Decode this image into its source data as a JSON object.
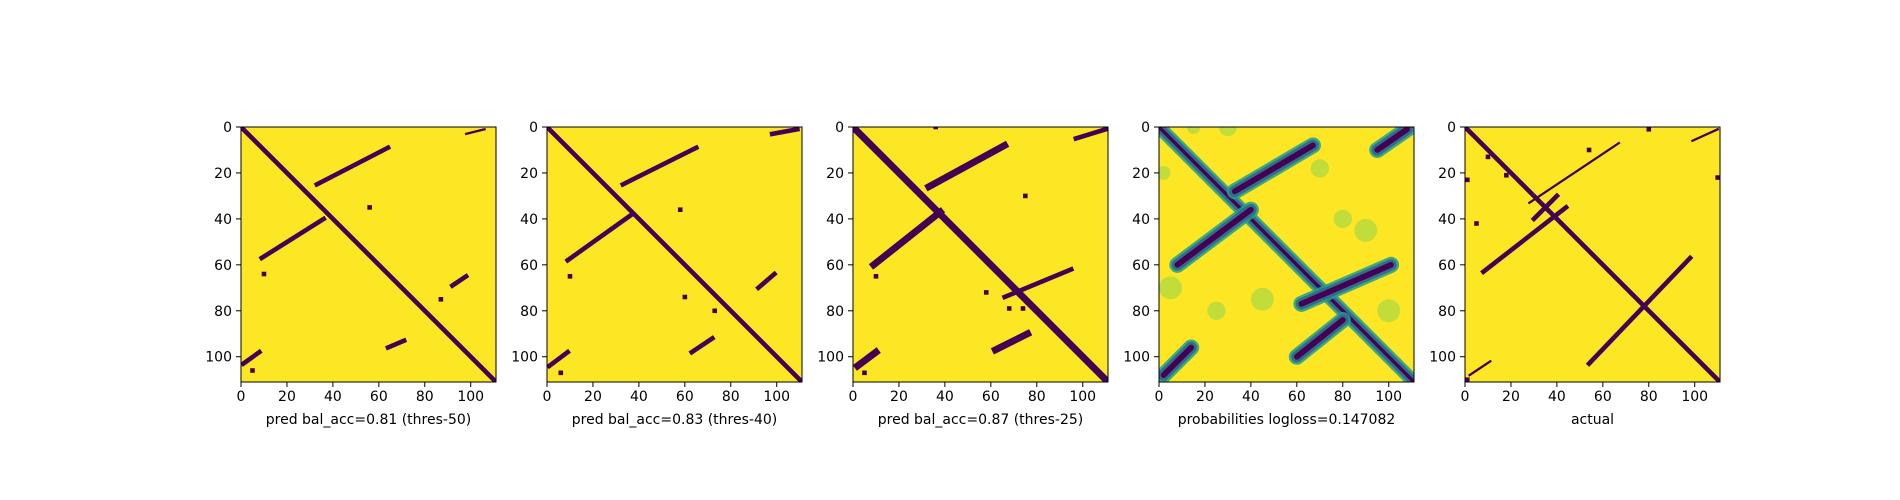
{
  "colors": {
    "background": "#fde725",
    "contact": "#440154",
    "mid_green": "#21a08a",
    "mid_blue": "#31688e",
    "light_green": "#7ad151",
    "frame": "#000000"
  },
  "chart_data": [
    {
      "type": "heatmap",
      "title": "",
      "xlabel": "pred bal_acc=0.81 (thres-50)",
      "ylabel": "",
      "xlim": [
        0,
        111
      ],
      "ylim": [
        111,
        0
      ],
      "xticks": [
        "0",
        "20",
        "40",
        "60",
        "80",
        "100"
      ],
      "yticks": [
        "0",
        "20",
        "40",
        "60",
        "80",
        "100"
      ],
      "values_range": [
        0,
        1
      ],
      "features": {
        "diagonal_width": 2,
        "strands": [
          {
            "from": [
              33,
              25
            ],
            "to": [
              64,
              9
            ],
            "width": 2
          },
          {
            "from": [
              9,
              57
            ],
            "to": [
              36,
              40
            ],
            "width": 2
          },
          {
            "from": [
              98,
              3
            ],
            "to": [
              106,
              1
            ],
            "width": 1
          },
          {
            "from": [
              92,
              69
            ],
            "to": [
              98,
              65
            ],
            "width": 2
          },
          {
            "from": [
              64,
              96
            ],
            "to": [
              71,
              93
            ],
            "width": 2
          },
          {
            "from": [
              1,
              103
            ],
            "to": [
              8,
              98
            ],
            "width": 2
          }
        ],
        "specks": [
          [
            10,
            64
          ],
          [
            87,
            75
          ],
          [
            5,
            106
          ],
          [
            56,
            35
          ]
        ]
      }
    },
    {
      "type": "heatmap",
      "title": "",
      "xlabel": "pred bal_acc=0.83 (thres-40)",
      "ylabel": "",
      "xlim": [
        0,
        111
      ],
      "ylim": [
        111,
        0
      ],
      "xticks": [
        "0",
        "20",
        "40",
        "60",
        "80",
        "100"
      ],
      "yticks": [
        "0",
        "20",
        "40",
        "60",
        "80",
        "100"
      ],
      "values_range": [
        0,
        1
      ],
      "features": {
        "diagonal_width": 2,
        "strands": [
          {
            "from": [
              33,
              25
            ],
            "to": [
              65,
              9
            ],
            "width": 2
          },
          {
            "from": [
              9,
              58
            ],
            "to": [
              37,
              38
            ],
            "width": 2
          },
          {
            "from": [
              98,
              3
            ],
            "to": [
              109,
              1
            ],
            "width": 2
          },
          {
            "from": [
              92,
              70
            ],
            "to": [
              99,
              64
            ],
            "width": 2
          },
          {
            "from": [
              63,
              98
            ],
            "to": [
              72,
              92
            ],
            "width": 2
          },
          {
            "from": [
              1,
              104
            ],
            "to": [
              9,
              98
            ],
            "width": 2
          }
        ],
        "specks": [
          [
            10,
            65
          ],
          [
            73,
            80
          ],
          [
            60,
            74
          ],
          [
            6,
            107
          ],
          [
            58,
            36
          ]
        ]
      }
    },
    {
      "type": "heatmap",
      "title": "",
      "xlabel": "pred bal_acc=0.87 (thres-25)",
      "ylabel": "",
      "xlim": [
        0,
        111
      ],
      "ylim": [
        111,
        0
      ],
      "xticks": [
        "0",
        "20",
        "40",
        "60",
        "80",
        "100"
      ],
      "yticks": [
        "0",
        "20",
        "40",
        "60",
        "80",
        "100"
      ],
      "values_range": [
        0,
        1
      ],
      "features": {
        "diagonal_width": 3,
        "strands": [
          {
            "from": [
              33,
              26
            ],
            "to": [
              66,
              8
            ],
            "width": 3
          },
          {
            "from": [
              9,
              60
            ],
            "to": [
              38,
              37
            ],
            "width": 3
          },
          {
            "from": [
              97,
              5
            ],
            "to": [
              110,
              1
            ],
            "width": 2
          },
          {
            "from": [
              66,
              74
            ],
            "to": [
              95,
              62
            ],
            "width": 2
          },
          {
            "from": [
              62,
              97
            ],
            "to": [
              76,
              90
            ],
            "width": 3
          },
          {
            "from": [
              2,
              104
            ],
            "to": [
              10,
              98
            ],
            "width": 3
          }
        ],
        "specks": [
          [
            10,
            65
          ],
          [
            74,
            79
          ],
          [
            58,
            72
          ],
          [
            36,
            0
          ],
          [
            75,
            30
          ],
          [
            5,
            107
          ],
          [
            68,
            79
          ]
        ]
      }
    },
    {
      "type": "heatmap",
      "title": "",
      "xlabel": "probabilities logloss=0.147082",
      "ylabel": "",
      "xlim": [
        0,
        111
      ],
      "ylim": [
        111,
        0
      ],
      "xticks": [
        "0",
        "20",
        "40",
        "60",
        "80",
        "100"
      ],
      "yticks": [
        "0",
        "20",
        "40",
        "60",
        "80",
        "100"
      ],
      "values_range": [
        0,
        1
      ],
      "features": {
        "diagonal_width": 3,
        "strands": [
          {
            "from": [
              33,
              28
            ],
            "to": [
              67,
              8
            ],
            "width": 4
          },
          {
            "from": [
              8,
              60
            ],
            "to": [
              40,
              36
            ],
            "width": 4
          },
          {
            "from": [
              95,
              10
            ],
            "to": [
              108,
              1
            ],
            "width": 4
          },
          {
            "from": [
              62,
              77
            ],
            "to": [
              101,
              60
            ],
            "width": 4
          },
          {
            "from": [
              60,
              100
            ],
            "to": [
              80,
              84
            ],
            "width": 4
          },
          {
            "from": [
              2,
              108
            ],
            "to": [
              14,
              96
            ],
            "width": 4
          }
        ],
        "haze": [
          {
            "center": [
              5,
              70
            ],
            "r": 5
          },
          {
            "center": [
              45,
              75
            ],
            "r": 5
          },
          {
            "center": [
              25,
              80
            ],
            "r": 4
          },
          {
            "center": [
              80,
              40
            ],
            "r": 4
          },
          {
            "center": [
              90,
              45
            ],
            "r": 5
          },
          {
            "center": [
              30,
              0
            ],
            "r": 4
          },
          {
            "center": [
              15,
              0
            ],
            "r": 3
          },
          {
            "center": [
              70,
              18
            ],
            "r": 4
          },
          {
            "center": [
              2,
              20
            ],
            "r": 3
          },
          {
            "center": [
              100,
              80
            ],
            "r": 5
          }
        ]
      }
    },
    {
      "type": "heatmap",
      "title": "",
      "xlabel": "actual",
      "ylabel": "",
      "xlim": [
        0,
        111
      ],
      "ylim": [
        111,
        0
      ],
      "xticks": [
        "0",
        "20",
        "40",
        "60",
        "80",
        "100"
      ],
      "yticks": [
        "0",
        "20",
        "40",
        "60",
        "80",
        "100"
      ],
      "values_range": [
        0,
        1
      ],
      "features": {
        "diagonal_width": 2,
        "strands": [
          {
            "from": [
              28,
              33
            ],
            "to": [
              67,
              7
            ],
            "width": 1
          },
          {
            "from": [
              8,
              63
            ],
            "to": [
              44,
              35
            ],
            "width": 2
          },
          {
            "from": [
              99,
              6
            ],
            "to": [
              110,
              1
            ],
            "width": 1
          },
          {
            "from": [
              54,
              103
            ],
            "to": [
              98,
              57
            ],
            "width": 2
          },
          {
            "from": [
              2,
              108
            ],
            "to": [
              11,
              102
            ],
            "width": 1
          },
          {
            "from": [
              30,
              40
            ],
            "to": [
              40,
              30
            ],
            "width": 2
          }
        ],
        "specks": [
          [
            1,
            23
          ],
          [
            10,
            13
          ],
          [
            5,
            42
          ],
          [
            18,
            21
          ],
          [
            110,
            22
          ],
          [
            54,
            10
          ],
          [
            1,
            110
          ],
          [
            80,
            1
          ]
        ]
      }
    }
  ]
}
